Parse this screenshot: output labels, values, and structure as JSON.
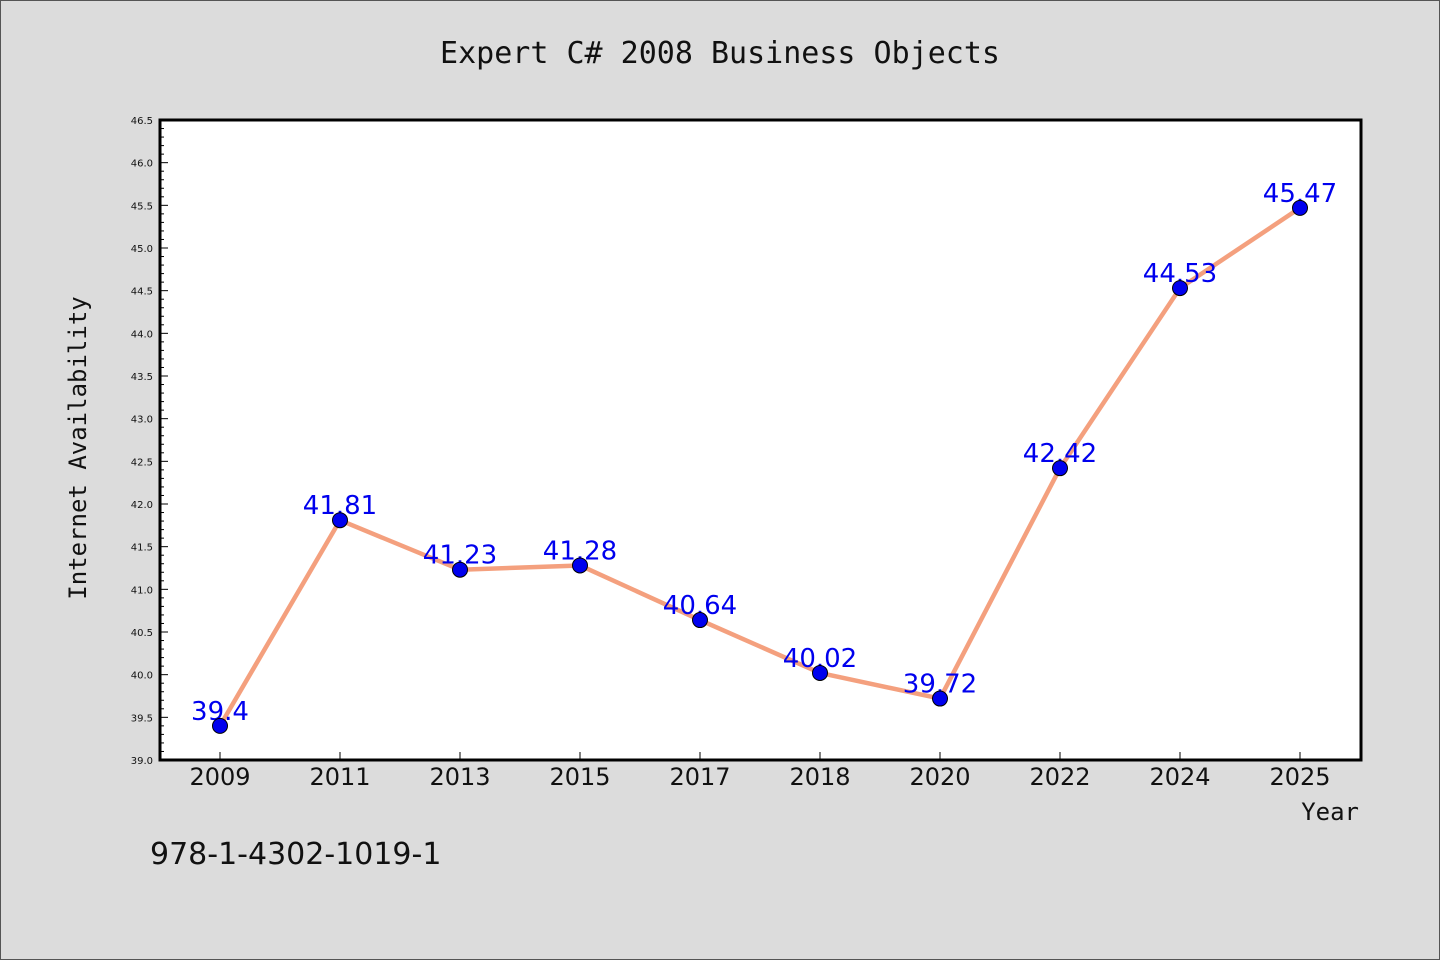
{
  "chart_data": {
    "type": "line",
    "title": "Expert C# 2008 Business Objects",
    "xlabel": "Year",
    "ylabel": "Internet Availability",
    "categories": [
      "2009",
      "2011",
      "2013",
      "2015",
      "2017",
      "2018",
      "2020",
      "2022",
      "2024",
      "2025"
    ],
    "values": [
      39.4,
      41.81,
      41.23,
      41.28,
      40.64,
      40.02,
      39.72,
      42.42,
      44.53,
      45.47
    ],
    "data_labels": [
      "39.4",
      "41.81",
      "41.23",
      "41.28",
      "40.64",
      "40.02",
      "39.72",
      "42.42",
      "44.53",
      "45.47"
    ],
    "ylim": [
      39.0,
      46.5
    ],
    "yticks": [
      "39.0",
      "39.5",
      "40.0",
      "40.5",
      "41.0",
      "41.5",
      "42.0",
      "42.5",
      "43.0",
      "43.5",
      "44.0",
      "44.5",
      "45.0",
      "45.5",
      "46.0",
      "46.5"
    ],
    "grid": false,
    "legend": "none",
    "colors": {
      "line": "#f4a07e",
      "marker": "#0000ee",
      "data_label": "#0000ee",
      "plot_bg": "#ffffff",
      "figure_bg": "#dcdcdc"
    }
  },
  "footnote": "978-1-4302-1019-1"
}
